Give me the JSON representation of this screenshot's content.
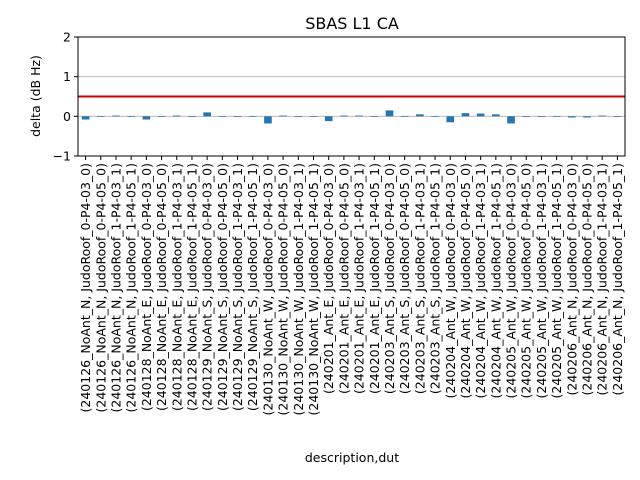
{
  "chart_data": {
    "type": "bar",
    "title": "SBAS L1 CA",
    "xlabel": "description,dut",
    "ylabel": "delta (dB Hz)",
    "ylim": [
      -1,
      2
    ],
    "yticks": [
      -1,
      0,
      1,
      2
    ],
    "grid": "horizontal",
    "threshold": 0.5,
    "colors": {
      "bar": "#1f77b4",
      "threshold": "#cc0000",
      "grid": "#b0b0b0"
    },
    "categories": [
      "(240126_NoAnt_N, JudoRoof_0-P4-03_0)",
      "(240126_NoAnt_N, JudoRoof_0-P4-05_0)",
      "(240126_NoAnt_N, JudoRoof_1-P4-03_1)",
      "(240126_NoAnt_N, JudoRoof_1-P4-05_1)",
      "(240128_NoAnt_E, JudoRoof_0-P4-03_0)",
      "(240128_NoAnt_E, JudoRoof_0-P4-05_0)",
      "(240128_NoAnt_E, JudoRoof_1-P4-03_1)",
      "(240128_NoAnt_E, JudoRoof_1-P4-05_1)",
      "(240129_NoAnt_S, JudoRoof_0-P4-03_0)",
      "(240129_NoAnt_S, JudoRoof_0-P4-05_0)",
      "(240129_NoAnt_S, JudoRoof_1-P4-03_1)",
      "(240129_NoAnt_S, JudoRoof_1-P4-05_1)",
      "(240130_NoAnt_W, JudoRoof_0-P4-03_0)",
      "(240130_NoAnt_W, JudoRoof_0-P4-05_0)",
      "(240130_NoAnt_W, JudoRoof_1-P4-03_1)",
      "(240130_NoAnt_W, JudoRoof_1-P4-05_1)",
      "(240201_Ant_E, JudoRoof_0-P4-03_0)",
      "(240201_Ant_E, JudoRoof_0-P4-05_0)",
      "(240201_Ant_E, JudoRoof_1-P4-03_1)",
      "(240201_Ant_E, JudoRoof_1-P4-05_1)",
      "(240203_Ant_S, JudoRoof_0-P4-03_0)",
      "(240203_Ant_S, JudoRoof_0-P4-05_0)",
      "(240203_Ant_S, JudoRoof_1-P4-03_1)",
      "(240203_Ant_S, JudoRoof_1-P4-05_1)",
      "(240204_Ant_W, JudoRoof_0-P4-03_0)",
      "(240204_Ant_W, JudoRoof_0-P4-05_0)",
      "(240204_Ant_W, JudoRoof_1-P4-03_1)",
      "(240204_Ant_W, JudoRoof_1-P4-05_1)",
      "(240205_Ant_W, JudoRoof_0-P4-03_0)",
      "(240205_Ant_W, JudoRoof_0-P4-05_0)",
      "(240205_Ant_W, JudoRoof_1-P4-03_1)",
      "(240205_Ant_W, JudoRoof_1-P4-05_1)",
      "(240206_Ant_N, JudoRoof_0-P4-03_0)",
      "(240206_Ant_N, JudoRoof_0-P4-05_0)",
      "(240206_Ant_N, JudoRoof_1-P4-03_1)",
      "(240206_Ant_N, JudoRoof_1-P4-05_1)"
    ],
    "values": [
      -0.08,
      0.0,
      0.02,
      0.0,
      -0.08,
      0.0,
      0.02,
      0.0,
      0.1,
      0.0,
      0.0,
      0.0,
      -0.18,
      0.02,
      0.0,
      0.0,
      -0.12,
      0.02,
      0.02,
      0.0,
      0.15,
      0.0,
      0.05,
      0.0,
      -0.15,
      0.08,
      0.07,
      0.05,
      -0.18,
      0.0,
      0.0,
      0.0,
      -0.03,
      -0.03,
      0.02,
      0.0
    ]
  }
}
